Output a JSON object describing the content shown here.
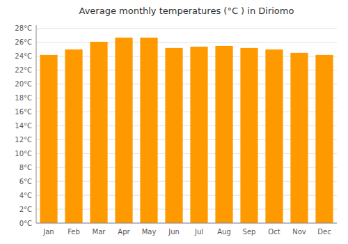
{
  "chart_data": {
    "type": "bar",
    "title": "Average monthly temperatures (°C ) in Diriomo",
    "categories": [
      "Jan",
      "Feb",
      "Mar",
      "Apr",
      "May",
      "Jun",
      "Jul",
      "Aug",
      "Sep",
      "Oct",
      "Nov",
      "Dec"
    ],
    "values": [
      24.2,
      25.0,
      26.1,
      26.7,
      26.7,
      25.2,
      25.4,
      25.5,
      25.2,
      25.0,
      24.5,
      24.2
    ],
    "color": "#FF9900",
    "ylim": [
      0,
      28.5
    ],
    "yticks": [
      {
        "value": 0,
        "label": "0°C"
      },
      {
        "value": 2,
        "label": "2°C"
      },
      {
        "value": 4,
        "label": "4°C"
      },
      {
        "value": 6,
        "label": "6°C"
      },
      {
        "value": 8,
        "label": "8°C"
      },
      {
        "value": 10,
        "label": "10°C"
      },
      {
        "value": 12,
        "label": "12°C"
      },
      {
        "value": 14,
        "label": "14°C"
      },
      {
        "value": 16,
        "label": "16°C"
      },
      {
        "value": 18,
        "label": "18°C"
      },
      {
        "value": 20,
        "label": "20°C"
      },
      {
        "value": 22,
        "label": "22°C"
      },
      {
        "value": 24,
        "label": "24°C"
      },
      {
        "value": 26,
        "label": "26°C"
      },
      {
        "value": 28,
        "label": "28°C"
      }
    ],
    "grid": true
  }
}
